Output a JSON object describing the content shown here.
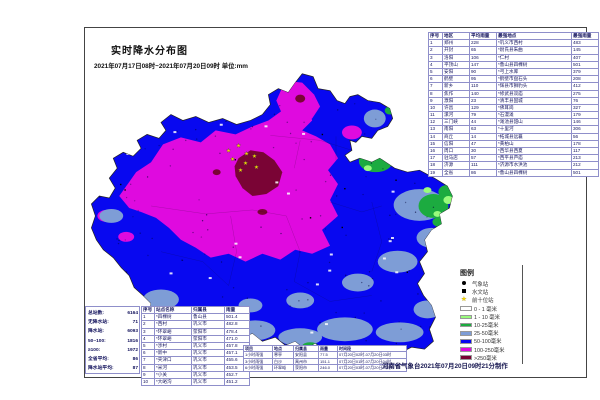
{
  "title": "实时降水分布图",
  "subtitle": "2021年07月17日08时~2021年07月20日09时 单位:mm",
  "credit": "河南省气象台2021年07月20日09时21分制作",
  "region_table": {
    "headers": [
      "序号",
      "地区",
      "平均雨量",
      "最强地点",
      "最强雨量"
    ],
    "rows": [
      [
        "1",
        "郑州",
        "228",
        "*巩义市西村",
        "483"
      ],
      [
        "2",
        "开封",
        "65",
        "*尉氏县朱曲",
        "145"
      ],
      [
        "3",
        "洛阳",
        "106",
        "*仁村",
        "407"
      ],
      [
        "4",
        "平顶山",
        "147",
        "*鲁山县四棵树",
        "501"
      ],
      [
        "5",
        "安阳",
        "90",
        "*弓上水库",
        "379"
      ],
      [
        "6",
        "鹤壁",
        "95",
        "*鹤壁市盘石头",
        "208"
      ],
      [
        "7",
        "新乡",
        "110",
        "*辉县市狮豹头",
        "412"
      ],
      [
        "8",
        "焦作",
        "140",
        "*修武县双庙",
        "275"
      ],
      [
        "9",
        "濮阳",
        "23",
        "*清丰县固城",
        "76"
      ],
      [
        "10",
        "许昌",
        "129",
        "*佛耳岗",
        "327"
      ],
      [
        "11",
        "漯河",
        "79",
        "*石漫滩",
        "179"
      ],
      [
        "12",
        "三门峡",
        "44",
        "*渑池县韶山",
        "146"
      ],
      [
        "13",
        "南阳",
        "63",
        "*十里河",
        "306"
      ],
      [
        "14",
        "商丘",
        "14",
        "*柘城县远襄",
        "56"
      ],
      [
        "15",
        "信阳",
        "47",
        "*黄柏山",
        "178"
      ],
      [
        "16",
        "周口",
        "30",
        "*西华县西夏",
        "117"
      ],
      [
        "17",
        "驻马店",
        "57",
        "*西平县芦庙",
        "213"
      ],
      [
        "18",
        "济源",
        "111",
        "*济源市水洪池",
        "212"
      ],
      [
        "19",
        "全省",
        "86",
        "*鲁山县四棵树",
        "501"
      ]
    ]
  },
  "top10_table": {
    "headers": [
      "序号",
      "站点名称",
      "归属县",
      "雨量"
    ],
    "rows": [
      [
        "1",
        "*四棵树",
        "鲁山县",
        "501.4"
      ],
      [
        "2",
        "*西村",
        "巩义市",
        "482.8"
      ],
      [
        "3",
        "*环翠峪",
        "荥阳市",
        "478.4"
      ],
      [
        "4",
        "*环翠峪",
        "荥阳市",
        "471.0"
      ],
      [
        "5",
        "*涉村",
        "巩义市",
        "457.8"
      ],
      [
        "6",
        "*新中",
        "巩义市",
        "457.1"
      ],
      [
        "7",
        "*夹津口",
        "巩义市",
        "455.6"
      ],
      [
        "8",
        "*米河",
        "巩义市",
        "453.5"
      ],
      [
        "9",
        "*小关",
        "巩义市",
        "452.7"
      ],
      [
        "10",
        "*大峪沟",
        "巩义市",
        "451.2"
      ]
    ]
  },
  "intensity_table": {
    "headers": [
      "项目",
      "地点",
      "归属县",
      "雨量",
      "时间段"
    ],
    "rows": [
      [
        "1小时雨强",
        "寒亭",
        "安阳县",
        "77.5",
        "07月20日02时-07月20日03时"
      ],
      [
        "3小时雨强",
        "白沙",
        "禹州市",
        "151.1",
        "07月20日01时-07月20日04时"
      ],
      [
        "6小时雨强",
        "环翠峪",
        "荥阳市",
        "246.0",
        "07月20日03时-07月20日09时"
      ]
    ]
  },
  "stats": {
    "rows": [
      {
        "label": "总站数:",
        "value": "6164"
      },
      {
        "label": "无降水站:",
        "value": "71"
      },
      {
        "label": "降水站:",
        "value": "6093"
      },
      {
        "label": "50~100:",
        "value": "1816"
      },
      {
        "label": "≥100:",
        "value": "1972"
      },
      {
        "label": "全省平均:",
        "value": "86"
      },
      {
        "label": "降水站平均:",
        "value": "87"
      }
    ]
  },
  "legend": {
    "title": "图例",
    "symbols": [
      {
        "shape": "circle",
        "label": "气象站",
        "color": "#000000"
      },
      {
        "shape": "square",
        "label": "水文站",
        "color": "#000000"
      },
      {
        "shape": "star",
        "label": "前十位站",
        "color": "#F5D400"
      }
    ],
    "classes": [
      {
        "color": "#FFFFFF",
        "label": "0 - 1 毫米"
      },
      {
        "color": "#99FB7C",
        "label": "1 - 10 毫米"
      },
      {
        "color": "#1CAB40",
        "label": "10-25毫米"
      },
      {
        "color": "#7E9DD6",
        "label": "25-50毫米"
      },
      {
        "color": "#0808F0",
        "label": "50-100毫米"
      },
      {
        "color": "#DF0ADF",
        "label": "100-250毫米"
      },
      {
        "color": "#7A0435",
        "label": ">250毫米"
      }
    ]
  }
}
